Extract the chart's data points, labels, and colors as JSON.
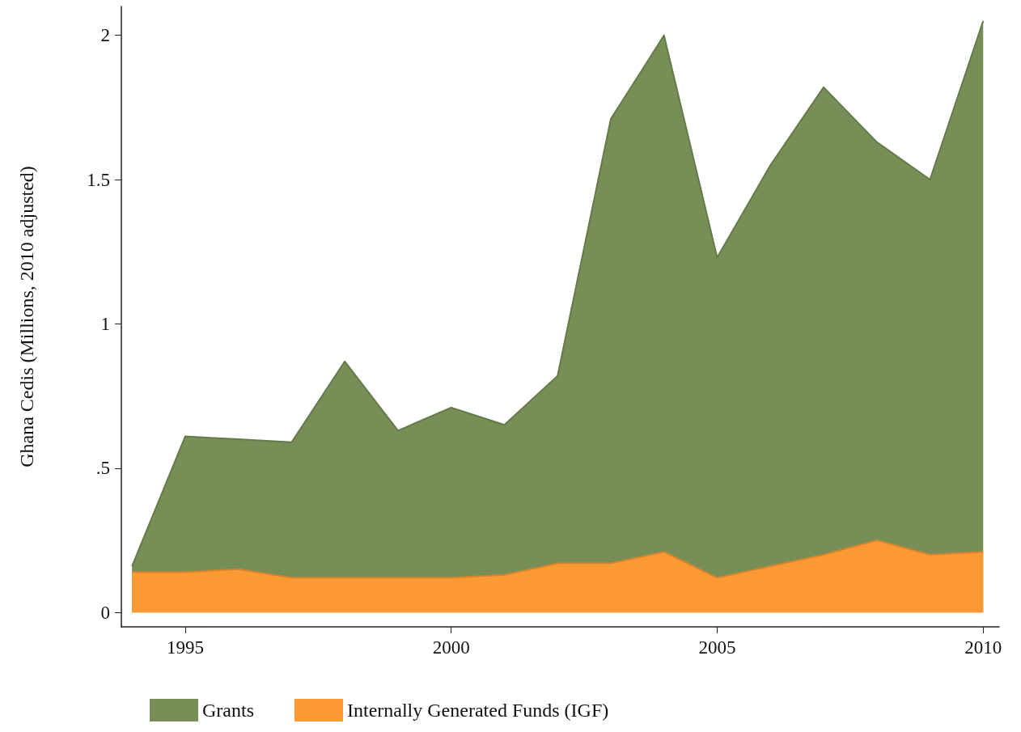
{
  "chart_data": {
    "type": "area",
    "ylabel": "Ghana Cedis (Millions, 2010 adjusted)",
    "stacked": true,
    "x": [
      1994,
      1995,
      1996,
      1997,
      1998,
      1999,
      2000,
      2001,
      2002,
      2003,
      2004,
      2005,
      2006,
      2007,
      2008,
      2009,
      2010
    ],
    "series": [
      {
        "name": "Internally Generated Funds (IGF)",
        "color": "#fb9a35",
        "values": [
          0.14,
          0.14,
          0.15,
          0.12,
          0.12,
          0.12,
          0.12,
          0.13,
          0.17,
          0.17,
          0.21,
          0.12,
          0.16,
          0.2,
          0.25,
          0.2,
          0.21
        ]
      },
      {
        "name": "Grants",
        "color": "#778f56",
        "values": [
          0.02,
          0.47,
          0.45,
          0.47,
          0.75,
          0.51,
          0.59,
          0.52,
          0.65,
          1.54,
          1.79,
          1.11,
          1.39,
          1.62,
          1.38,
          1.3,
          1.84
        ]
      }
    ],
    "xlim": [
      1993.8,
      2010.3
    ],
    "xticks": [
      1995,
      2000,
      2005,
      2010
    ],
    "ylim": [
      -0.05,
      2.1
    ],
    "yticks": [
      0,
      {
        "value": 0.5,
        "label": ".5"
      },
      1,
      1.5,
      2
    ],
    "grid": false,
    "legend": "bottom",
    "marker": "none"
  }
}
